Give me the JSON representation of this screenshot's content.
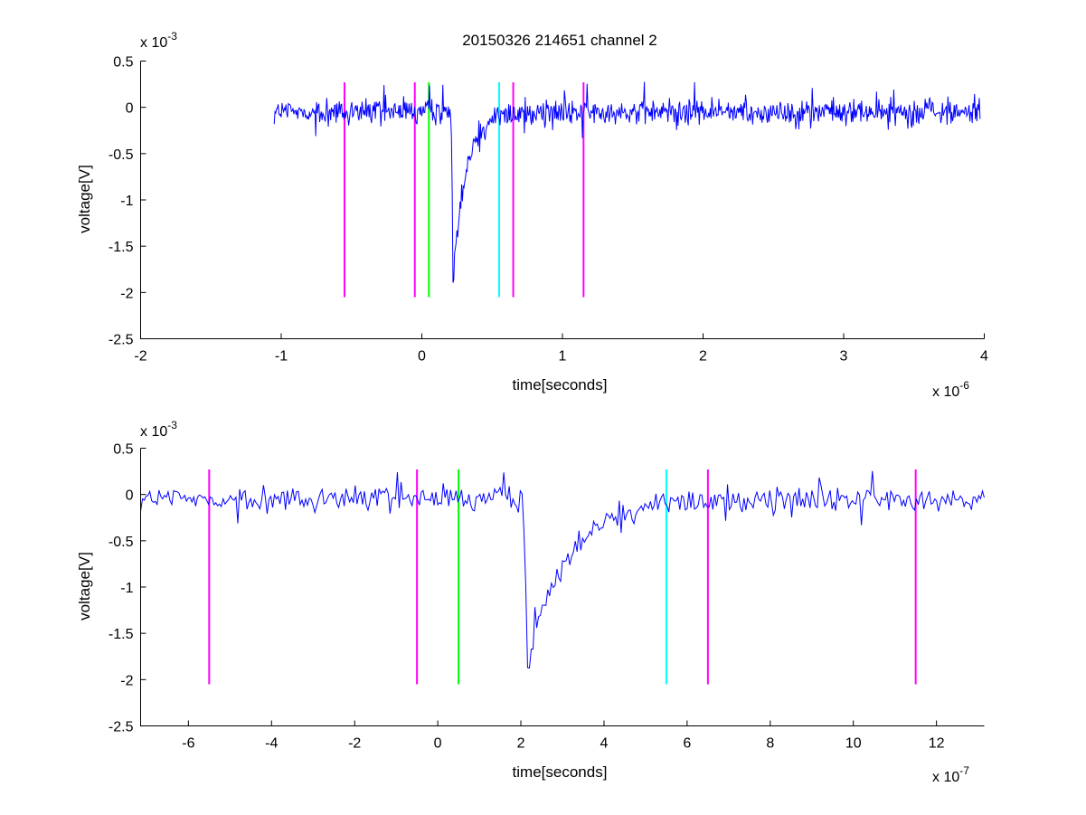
{
  "chart_data": [
    {
      "type": "line",
      "title": "20150326 214651 channel 2",
      "xlabel": "time[seconds]",
      "ylabel": "voltage[V]",
      "x_multiplier": "x 10",
      "x_exponent": "-6",
      "y_multiplier": "x 10",
      "y_exponent": "-3",
      "xlim": [
        -2,
        4
      ],
      "ylim": [
        -2.5,
        0.5
      ],
      "xticks": [
        -2,
        -1,
        0,
        1,
        2,
        3,
        4
      ],
      "yticks": [
        0.5,
        0,
        -0.5,
        -1,
        -1.5,
        -2,
        -2.5
      ],
      "xtick_labels": [
        "-2",
        "-1",
        "0",
        "1",
        "2",
        "3",
        "4"
      ],
      "ytick_labels": [
        "0.5",
        "0",
        "-0.5",
        "-1",
        "-1.5",
        "-2",
        "-2.5"
      ],
      "grid": false,
      "signal": {
        "color": "#0000ff",
        "x_start": -1.05,
        "x_end": 3.97,
        "baseline": -0.05,
        "noise_amplitude": 0.13,
        "pulse_time": 0.22,
        "pulse_min": -1.85,
        "pulse_decay": 0.09
      },
      "markers": [
        {
          "x": -0.55,
          "color": "#ff00ff",
          "y_from": -2.05,
          "y_to": 0.27
        },
        {
          "x": -0.05,
          "color": "#ff00ff",
          "y_from": -2.05,
          "y_to": 0.27
        },
        {
          "x": 0.05,
          "color": "#00ff00",
          "y_from": -2.05,
          "y_to": 0.27
        },
        {
          "x": 0.55,
          "color": "#00ffff",
          "y_from": -2.05,
          "y_to": 0.27
        },
        {
          "x": 0.65,
          "color": "#ff00ff",
          "y_from": -2.05,
          "y_to": 0.27
        },
        {
          "x": 1.15,
          "color": "#ff00ff",
          "y_from": -2.05,
          "y_to": 0.27
        }
      ]
    },
    {
      "type": "line",
      "title": "",
      "xlabel": "time[seconds]",
      "ylabel": "voltage[V]",
      "x_multiplier": "x 10",
      "x_exponent": "-7",
      "y_multiplier": "x 10",
      "y_exponent": "-3",
      "xlim": [
        -7.15,
        13.15
      ],
      "ylim": [
        -2.5,
        0.5
      ],
      "xticks": [
        -6,
        -4,
        -2,
        0,
        2,
        4,
        6,
        8,
        10,
        12
      ],
      "yticks": [
        0.5,
        0,
        -0.5,
        -1,
        -1.5,
        -2,
        -2.5
      ],
      "xtick_labels": [
        "-6",
        "-4",
        "-2",
        "0",
        "2",
        "4",
        "6",
        "8",
        "10",
        "12"
      ],
      "ytick_labels": [
        "0.5",
        "0",
        "-0.5",
        "-1",
        "-1.5",
        "-2",
        "-2.5"
      ],
      "grid": false,
      "signal": {
        "color": "#0000ff",
        "x_start": -7.15,
        "x_end": 13.15,
        "baseline": -0.05,
        "noise_amplitude": 0.13,
        "pulse_time": 2.15,
        "pulse_min": -1.85,
        "pulse_decay": 0.9
      },
      "markers": [
        {
          "x": -5.5,
          "color": "#ff00ff",
          "y_from": -2.05,
          "y_to": 0.27
        },
        {
          "x": -0.5,
          "color": "#ff00ff",
          "y_from": -2.05,
          "y_to": 0.27
        },
        {
          "x": 0.5,
          "color": "#00ff00",
          "y_from": -2.05,
          "y_to": 0.27
        },
        {
          "x": 5.5,
          "color": "#00ffff",
          "y_from": -2.05,
          "y_to": 0.27
        },
        {
          "x": 6.5,
          "color": "#ff00ff",
          "y_from": -2.05,
          "y_to": 0.27
        },
        {
          "x": 11.5,
          "color": "#ff00ff",
          "y_from": -2.05,
          "y_to": 0.27
        }
      ]
    }
  ]
}
